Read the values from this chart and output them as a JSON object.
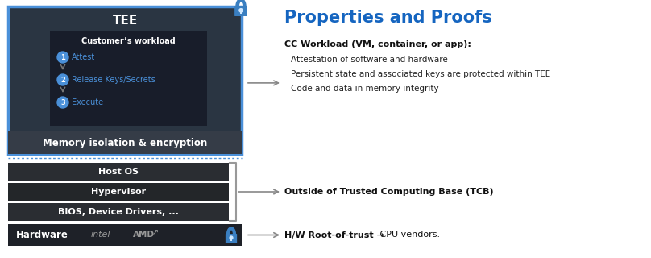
{
  "bg_color": "#ffffff",
  "tee_outer_bg": "#2a3542",
  "tee_outer_border": "#4a90d9",
  "tee_label": "TEE",
  "tee_label_color": "#ffffff",
  "workload_bg": "#181d2a",
  "workload_title": "Customer’s workload",
  "workload_title_color": "#ffffff",
  "steps": [
    "Attest",
    "Release Keys/Secrets",
    "Execute"
  ],
  "step_color": "#4a90d9",
  "memory_bar_bg": "#353c47",
  "memory_bar_text": "Memory isolation & encryption",
  "memory_bar_color": "#ffffff",
  "host_os_bg": "#2a2d32",
  "host_os_text": "Host OS",
  "hypervisor_bg": "#232629",
  "hypervisor_text": "Hypervisor",
  "bios_bg": "#2a2d32",
  "bios_text": "BIOS, Device Drivers, ...",
  "hardware_bg": "#1e2128",
  "hardware_text": "Hardware",
  "hardware_text_color": "#ffffff",
  "layer_text_color": "#ffffff",
  "lock_color": "#3a7fc1",
  "lock_inner": "#d0e8ff",
  "arrow_color": "#888888",
  "right_title": "Properties and Proofs",
  "right_title_color": "#1565c0",
  "cc_label_bold": "CC Workload (VM, container, or app):",
  "bullets": [
    "Attestation of software and hardware",
    "Persistent state and associated keys are protected within TEE",
    "Code and data in memory integrity"
  ],
  "outside_tcb_label": "Outside of Trusted Computing Base (TCB)",
  "hw_root_bold": "H/W Root-of-trust →",
  "hw_root_normal": " CPU vendors.",
  "dotted_line_color": "#4a90d9",
  "bracket_color": "#999999"
}
